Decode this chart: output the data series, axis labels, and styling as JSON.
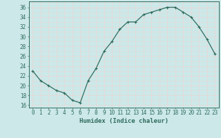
{
  "x": [
    0,
    1,
    2,
    3,
    4,
    5,
    6,
    7,
    8,
    9,
    10,
    11,
    12,
    13,
    14,
    15,
    16,
    17,
    18,
    19,
    20,
    21,
    22,
    23
  ],
  "y": [
    23,
    21,
    20,
    19,
    18.5,
    17,
    16.5,
    21,
    23.5,
    27,
    29,
    31.5,
    33,
    33,
    34.5,
    35,
    35.5,
    36,
    36,
    35,
    34,
    32,
    29.5,
    26.5
  ],
  "line_color": "#2e6b5e",
  "marker": "+",
  "marker_size": 3,
  "marker_lw": 0.8,
  "line_width": 0.9,
  "bg_color": "#cce8e8",
  "grid_color": "#e8d8d8",
  "xlabel": "Humidex (Indice chaleur)",
  "xlim": [
    -0.5,
    23.5
  ],
  "ylim": [
    15.5,
    37.2
  ],
  "yticks": [
    16,
    18,
    20,
    22,
    24,
    26,
    28,
    30,
    32,
    34,
    36
  ],
  "xticks": [
    0,
    1,
    2,
    3,
    4,
    5,
    6,
    7,
    8,
    9,
    10,
    11,
    12,
    13,
    14,
    15,
    16,
    17,
    18,
    19,
    20,
    21,
    22,
    23
  ],
  "xtick_labels": [
    "0",
    "1",
    "2",
    "3",
    "4",
    "5",
    "6",
    "7",
    "8",
    "9",
    "10",
    "11",
    "12",
    "13",
    "14",
    "15",
    "16",
    "17",
    "18",
    "19",
    "20",
    "21",
    "22",
    "23"
  ],
  "tick_color": "#2e6b5e",
  "axis_color": "#2e6b5e",
  "label_fontsize": 6.5,
  "tick_fontsize": 5.5
}
